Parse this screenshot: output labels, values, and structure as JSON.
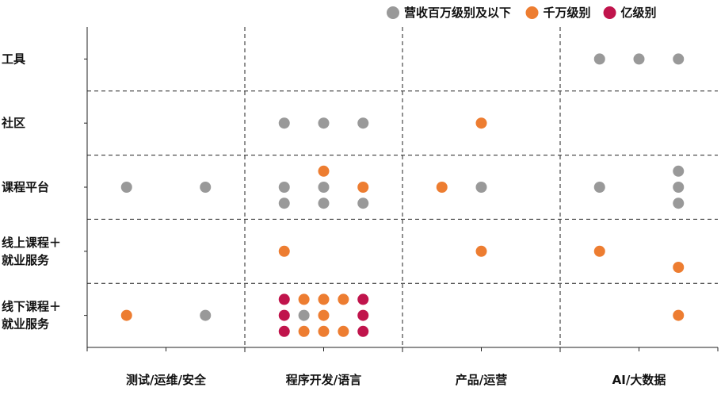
{
  "chart_data": {
    "type": "scatter",
    "title": "",
    "xlabel": "",
    "ylabel": "",
    "x_categories": [
      "测试/运维/安全",
      "程序开发/语言",
      "产品/运营",
      "AI/大数据"
    ],
    "y_categories": [
      "工具",
      "社区",
      "课程平台",
      "线上课程＋就业服务",
      "线下课程＋就业服务"
    ],
    "y_label_lines": [
      [
        "工具"
      ],
      [
        "社区"
      ],
      [
        "课程平台"
      ],
      [
        "线上课程＋",
        "就业服务"
      ],
      [
        "线下课程＋",
        "就业服务"
      ]
    ],
    "legend": [
      {
        "key": "million",
        "label": "营收百万级别及以下",
        "color": "#999999"
      },
      {
        "key": "ten_million",
        "label": "千万级别",
        "color": "#ED7D31"
      },
      {
        "key": "hundred_million",
        "label": "亿级别",
        "color": "#C0144C"
      }
    ],
    "grid_sub_x": [
      0.5,
      1,
      1.5,
      2,
      2.5,
      3,
      3.5,
      4,
      4.5,
      5,
      5.5,
      6,
      6.5,
      7,
      7.5,
      8
    ],
    "points": [
      {
        "x": 6.5,
        "y": 0,
        "level": "million"
      },
      {
        "x": 7.0,
        "y": 0,
        "level": "million"
      },
      {
        "x": 7.5,
        "y": 0,
        "level": "million"
      },
      {
        "x": 2.5,
        "y": 1,
        "level": "million"
      },
      {
        "x": 3.0,
        "y": 1,
        "level": "million"
      },
      {
        "x": 3.5,
        "y": 1,
        "level": "million"
      },
      {
        "x": 5.0,
        "y": 1,
        "level": "ten_million"
      },
      {
        "x": 0.5,
        "y": 2,
        "level": "million"
      },
      {
        "x": 1.5,
        "y": 2,
        "level": "million"
      },
      {
        "x": 3.0,
        "y": 1.75,
        "level": "ten_million"
      },
      {
        "x": 2.5,
        "y": 2,
        "level": "million"
      },
      {
        "x": 3.0,
        "y": 2,
        "level": "million"
      },
      {
        "x": 3.5,
        "y": 2,
        "level": "ten_million"
      },
      {
        "x": 2.5,
        "y": 2.25,
        "level": "million"
      },
      {
        "x": 3.0,
        "y": 2.25,
        "level": "million"
      },
      {
        "x": 3.5,
        "y": 2.25,
        "level": "million"
      },
      {
        "x": 4.5,
        "y": 2,
        "level": "ten_million"
      },
      {
        "x": 5.0,
        "y": 2,
        "level": "million"
      },
      {
        "x": 6.5,
        "y": 2,
        "level": "million"
      },
      {
        "x": 7.5,
        "y": 1.75,
        "level": "million"
      },
      {
        "x": 7.5,
        "y": 2,
        "level": "million"
      },
      {
        "x": 7.5,
        "y": 2.25,
        "level": "million"
      },
      {
        "x": 2.5,
        "y": 3,
        "level": "ten_million"
      },
      {
        "x": 5.0,
        "y": 3,
        "level": "ten_million"
      },
      {
        "x": 6.5,
        "y": 3,
        "level": "ten_million"
      },
      {
        "x": 7.5,
        "y": 3.25,
        "level": "ten_million"
      },
      {
        "x": 0.5,
        "y": 4,
        "level": "ten_million"
      },
      {
        "x": 1.5,
        "y": 4,
        "level": "million"
      },
      {
        "x": 2.5,
        "y": 3.75,
        "level": "hundred_million"
      },
      {
        "x": 2.75,
        "y": 3.75,
        "level": "ten_million"
      },
      {
        "x": 3.0,
        "y": 3.75,
        "level": "ten_million"
      },
      {
        "x": 3.25,
        "y": 3.75,
        "level": "ten_million"
      },
      {
        "x": 3.5,
        "y": 3.75,
        "level": "hundred_million"
      },
      {
        "x": 2.5,
        "y": 4,
        "level": "hundred_million"
      },
      {
        "x": 2.75,
        "y": 4,
        "level": "million"
      },
      {
        "x": 3.0,
        "y": 4,
        "level": "ten_million"
      },
      {
        "x": 3.5,
        "y": 4,
        "level": "hundred_million"
      },
      {
        "x": 2.5,
        "y": 4.25,
        "level": "hundred_million"
      },
      {
        "x": 2.75,
        "y": 4.25,
        "level": "ten_million"
      },
      {
        "x": 3.0,
        "y": 4.25,
        "level": "ten_million"
      },
      {
        "x": 3.25,
        "y": 4.25,
        "level": "ten_million"
      },
      {
        "x": 3.5,
        "y": 4.25,
        "level": "hundred_million"
      },
      {
        "x": 7.5,
        "y": 4,
        "level": "ten_million"
      }
    ]
  }
}
